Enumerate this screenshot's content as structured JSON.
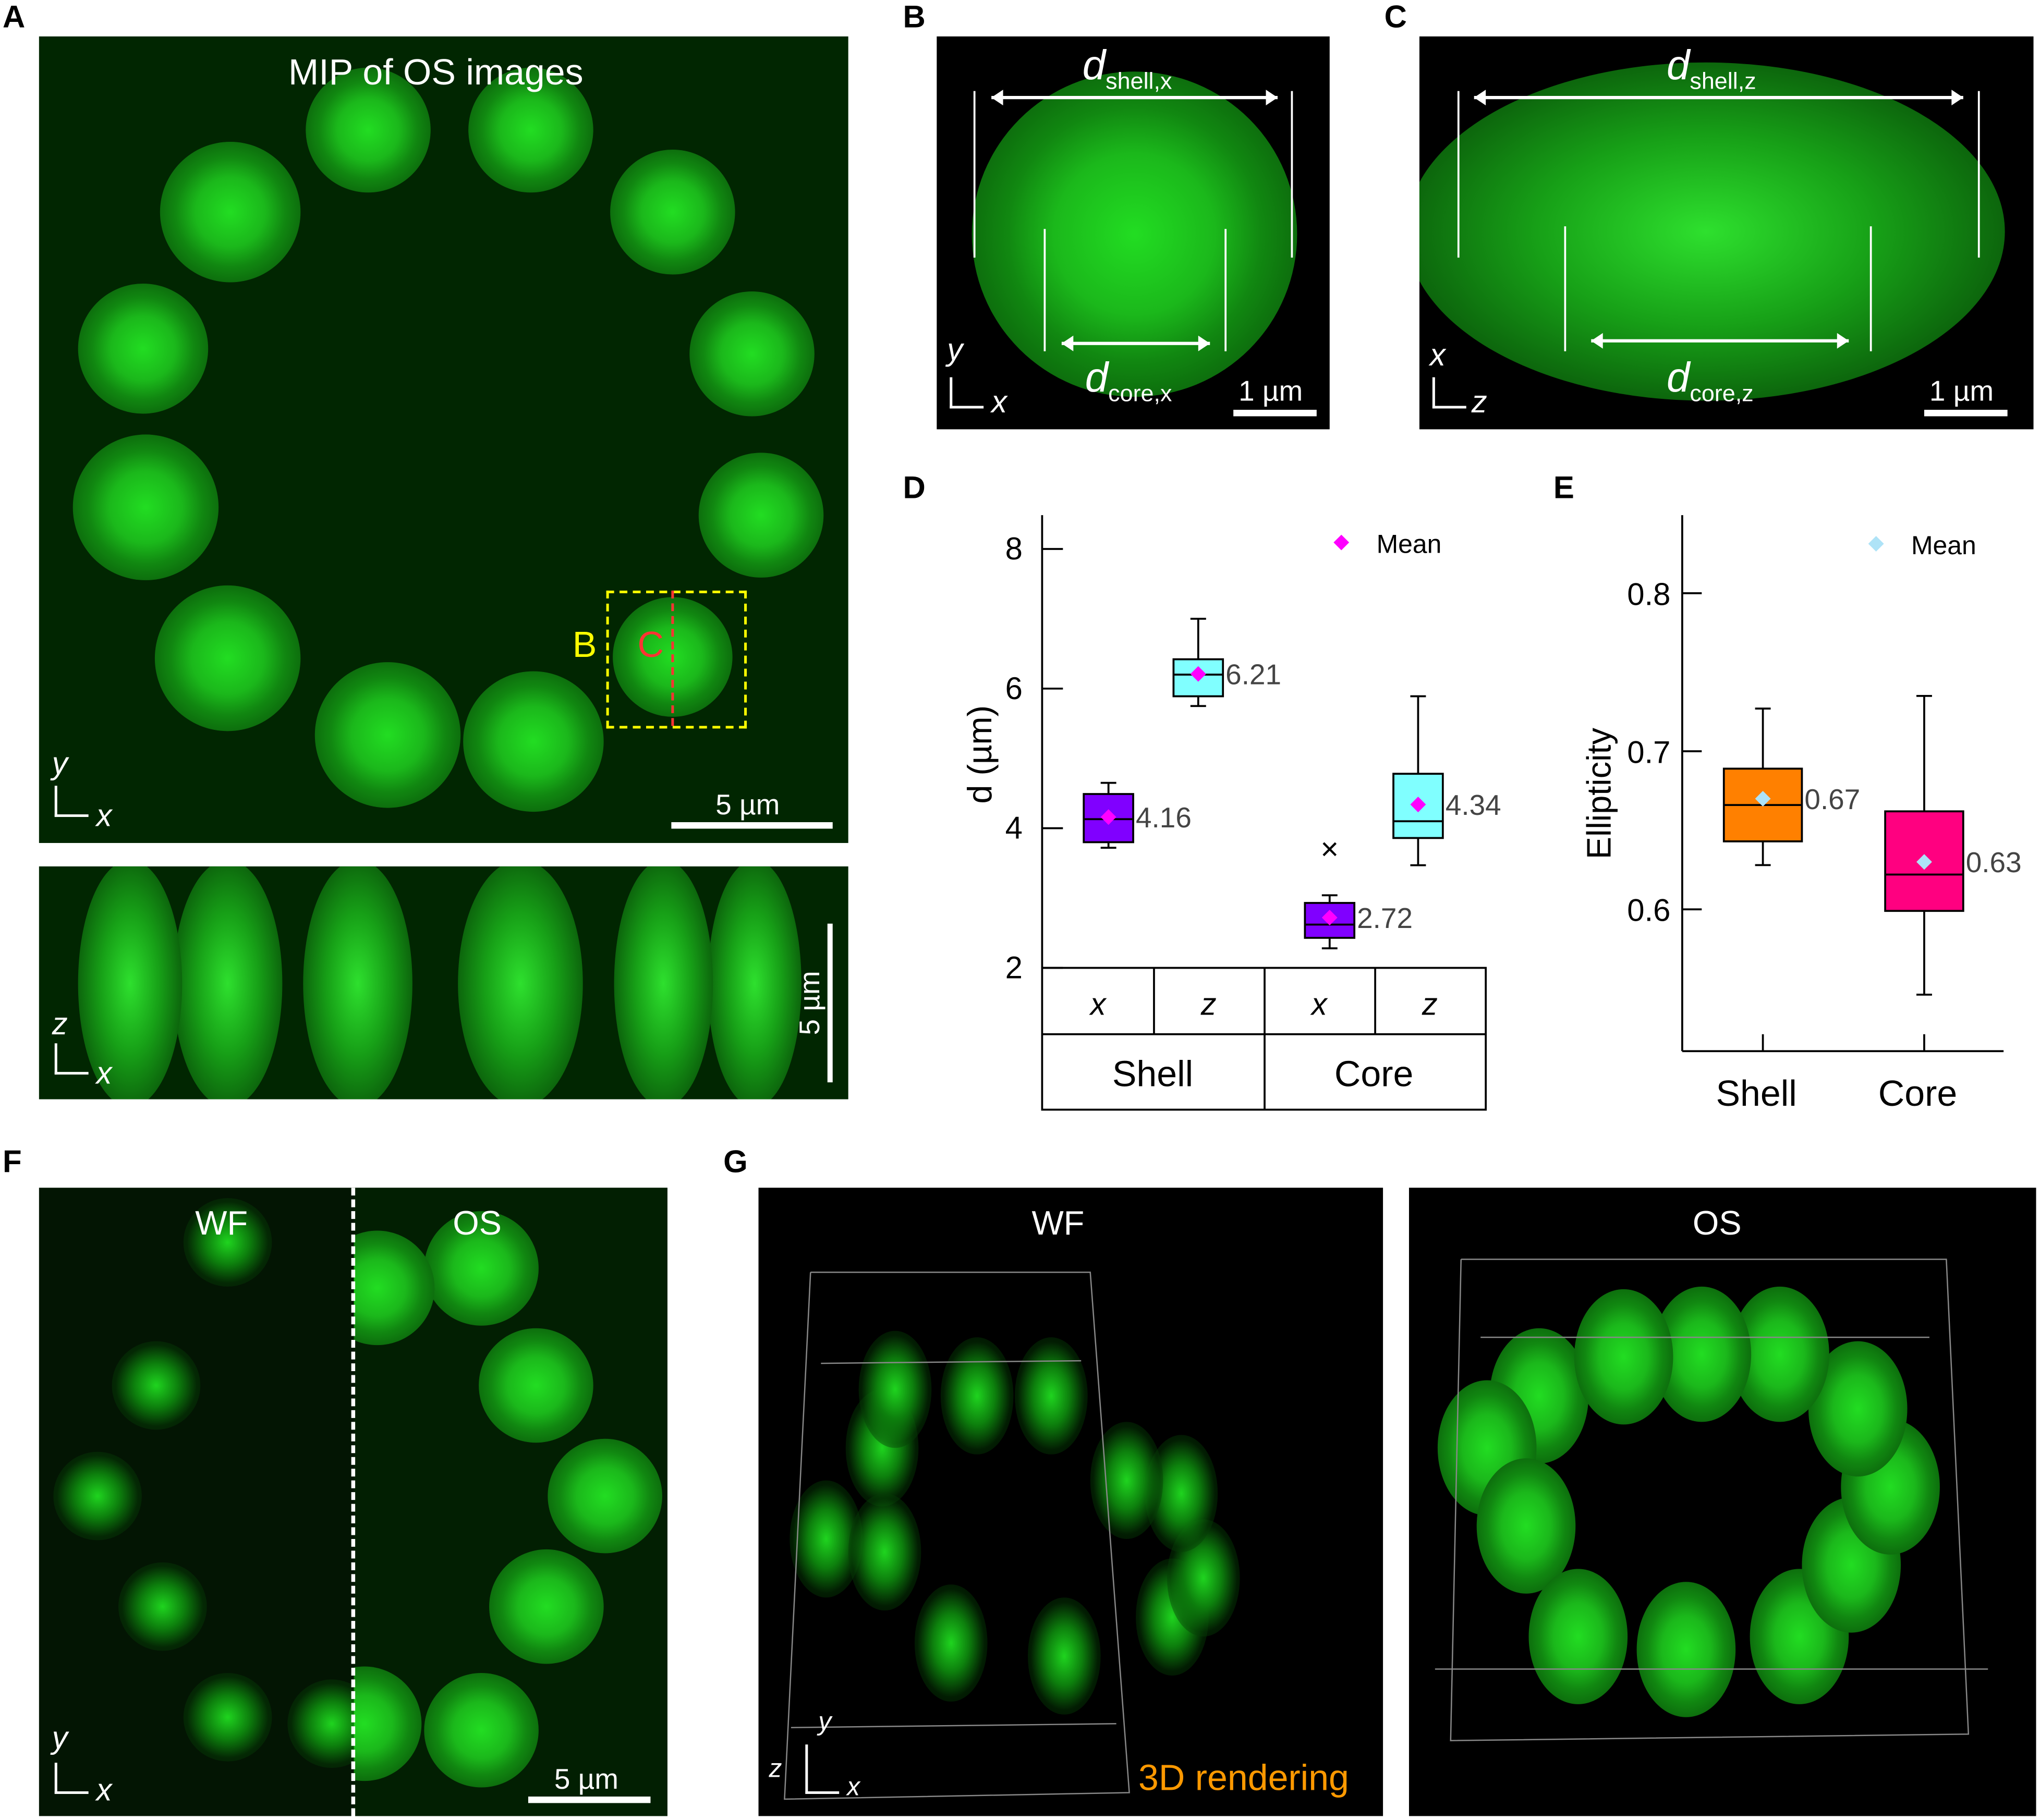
{
  "panels": {
    "A": {
      "label": "A",
      "title": "MIP of OS images",
      "scale": "5 µm",
      "scale_xz": "5 µm",
      "box_b": "B",
      "box_c": "C",
      "axes_xy": [
        "y",
        "x"
      ],
      "axes_xz": [
        "z",
        "x"
      ]
    },
    "B": {
      "label": "B",
      "d": "d",
      "shell_sub": "shell,x",
      "core_sub": "core,x",
      "scale": "1 µm",
      "axes": [
        "y",
        "x"
      ]
    },
    "C": {
      "label": "C",
      "d": "d",
      "shell_sub": "shell,z",
      "core_sub": "core,z",
      "scale": "1 µm",
      "axes": [
        "x",
        "z"
      ]
    },
    "D": {
      "label": "D"
    },
    "E": {
      "label": "E"
    },
    "F": {
      "label": "F",
      "left": "WF",
      "right": "OS",
      "scale": "5 µm",
      "axes": [
        "y",
        "x"
      ]
    },
    "G": {
      "label": "G",
      "left": "WF",
      "right": "OS",
      "caption": "3D rendering",
      "axes": [
        "y",
        "z",
        "x"
      ]
    }
  },
  "colors": {
    "fluorescence": "#00ff00",
    "box_b": "#ffff00",
    "box_c": "#ff3333",
    "caption": "#ff9900",
    "mean_D": "#ff00ff",
    "mean_E": "#aee3f7"
  },
  "chart_data": [
    {
      "type": "box",
      "ylabel": "d (µm)",
      "ylim": [
        2,
        8.5
      ],
      "yticks": [
        "2",
        "4",
        "6",
        "8"
      ],
      "legend": {
        "marker": "diamond",
        "label": "Mean",
        "placement": "top-right"
      },
      "group_table": {
        "row1": [
          "x",
          "z",
          "x",
          "z"
        ],
        "row2": [
          "Shell",
          "Core"
        ]
      },
      "series": [
        {
          "group": "Shell",
          "axis": "x",
          "color": "#8000ff",
          "whisker_low": 3.72,
          "q1": 3.8,
          "median": 4.13,
          "q3": 4.49,
          "whisker_high": 4.65,
          "mean": 4.16,
          "label": "4.16",
          "outliers": []
        },
        {
          "group": "Shell",
          "axis": "z",
          "color": "#80ffff",
          "whisker_low": 5.75,
          "q1": 5.89,
          "median": 6.2,
          "q3": 6.42,
          "whisker_high": 7.0,
          "mean": 6.21,
          "label": "6.21",
          "outliers": []
        },
        {
          "group": "Core",
          "axis": "x",
          "color": "#8000ff",
          "whisker_low": 2.28,
          "q1": 2.43,
          "median": 2.62,
          "q3": 2.93,
          "whisker_high": 3.04,
          "mean": 2.72,
          "label": "2.72",
          "outliers": [
            3.7
          ]
        },
        {
          "group": "Core",
          "axis": "z",
          "color": "#80ffff",
          "whisker_low": 3.47,
          "q1": 3.86,
          "median": 4.1,
          "q3": 4.78,
          "whisker_high": 5.89,
          "mean": 4.34,
          "label": "4.34",
          "outliers": []
        }
      ]
    },
    {
      "type": "box",
      "ylabel": "Ellipticity",
      "ylim": [
        0.51,
        0.85
      ],
      "yticks": [
        "0.6",
        "0.7",
        "0.8"
      ],
      "legend": {
        "marker": "diamond",
        "label": "Mean",
        "placement": "top-right"
      },
      "categories": [
        "Shell",
        "Core"
      ],
      "series": [
        {
          "category": "Shell",
          "color": "#ff8000",
          "whisker_low": 0.628,
          "q1": 0.643,
          "median": 0.666,
          "q3": 0.689,
          "whisker_high": 0.727,
          "mean": 0.67,
          "label": "0.67"
        },
        {
          "category": "Core",
          "color": "#ff0080",
          "whisker_low": 0.546,
          "q1": 0.599,
          "median": 0.622,
          "q3": 0.662,
          "whisker_high": 0.735,
          "mean": 0.63,
          "label": "0.63"
        }
      ]
    }
  ]
}
